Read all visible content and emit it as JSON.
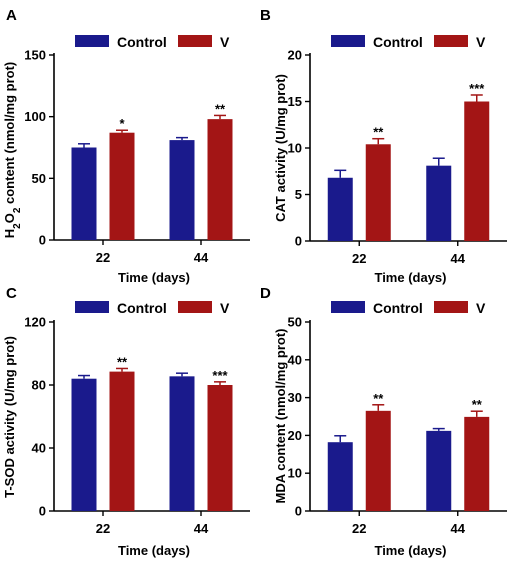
{
  "colors": {
    "Control": "#1a1a8c",
    "V": "#a31515",
    "axis": "#000000"
  },
  "chart_data": [
    {
      "type": "bar",
      "panel_label": "A",
      "ylabel": "H2O2 content (nmol/mg prot)",
      "ylabel_parts": {
        "pre": "H",
        "sub1": "2",
        "mid": "O",
        "sub2": "2",
        "post": " content (nmol/mg prot)"
      },
      "xlabel": "Time (days)",
      "categories": [
        "22",
        "44"
      ],
      "ylim": [
        0,
        150
      ],
      "yticks": [
        0,
        50,
        100,
        150
      ],
      "legend": [
        "Control",
        "V"
      ],
      "legend_position": "top",
      "series": [
        {
          "name": "Control",
          "values": [
            75,
            81
          ],
          "errors": [
            3,
            2
          ],
          "labels": [
            "",
            ""
          ]
        },
        {
          "name": "V",
          "values": [
            87,
            98
          ],
          "errors": [
            2,
            3
          ],
          "labels": [
            "*",
            "**"
          ]
        }
      ]
    },
    {
      "type": "bar",
      "panel_label": "B",
      "ylabel": "CAT activity (U/mg prot)",
      "xlabel": "Time (days)",
      "categories": [
        "22",
        "44"
      ],
      "ylim": [
        0,
        20
      ],
      "yticks": [
        0,
        5,
        10,
        15,
        20
      ],
      "legend": [
        "Control",
        "V"
      ],
      "legend_position": "top",
      "series": [
        {
          "name": "Control",
          "values": [
            6.8,
            8.1
          ],
          "errors": [
            0.8,
            0.8
          ],
          "labels": [
            "",
            ""
          ]
        },
        {
          "name": "V",
          "values": [
            10.4,
            15.0
          ],
          "errors": [
            0.6,
            0.7
          ],
          "labels": [
            "**",
            "***"
          ]
        }
      ]
    },
    {
      "type": "bar",
      "panel_label": "C",
      "ylabel": "T-SOD activity (U/mg prot)",
      "xlabel": "Time (days)",
      "categories": [
        "22",
        "44"
      ],
      "ylim": [
        0,
        120
      ],
      "yticks": [
        0,
        40,
        80,
        120
      ],
      "legend": [
        "Control",
        "V"
      ],
      "legend_position": "top",
      "series": [
        {
          "name": "Control",
          "values": [
            84,
            85.5
          ],
          "errors": [
            2,
            2
          ],
          "labels": [
            "",
            ""
          ]
        },
        {
          "name": "V",
          "values": [
            88.5,
            80
          ],
          "errors": [
            2,
            2
          ],
          "labels": [
            "**",
            "***"
          ]
        }
      ]
    },
    {
      "type": "bar",
      "panel_label": "D",
      "ylabel": "MDA content (nmol/mg prot)",
      "xlabel": "Time (days)",
      "categories": [
        "22",
        "44"
      ],
      "ylim": [
        0,
        50
      ],
      "yticks": [
        0,
        10,
        20,
        30,
        40,
        50
      ],
      "legend": [
        "Control",
        "V"
      ],
      "legend_position": "top",
      "series": [
        {
          "name": "Control",
          "values": [
            18.2,
            21.2
          ],
          "errors": [
            1.7,
            0.6
          ],
          "labels": [
            "",
            ""
          ]
        },
        {
          "name": "V",
          "values": [
            26.5,
            24.9
          ],
          "errors": [
            1.6,
            1.5
          ],
          "labels": [
            "**",
            "**"
          ]
        }
      ]
    }
  ]
}
